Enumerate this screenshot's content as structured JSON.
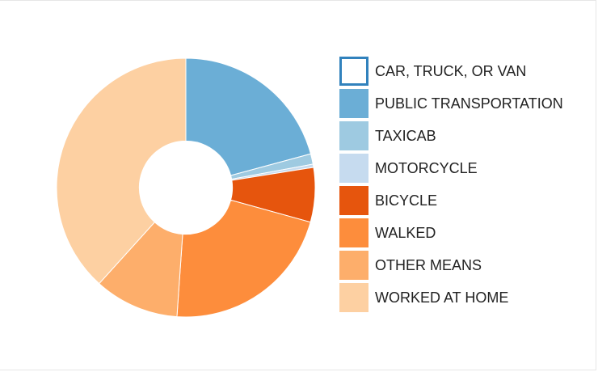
{
  "chart_data": {
    "type": "pie",
    "categories": [
      "CAR, TRUCK, OR VAN",
      "PUBLIC TRANSPORTATION",
      "TAXICAB",
      "MOTORCYCLE",
      "BICYCLE",
      "WALKED",
      "OTHER MEANS",
      "WORKED AT HOME"
    ],
    "values": [
      0.0,
      20.8,
      1.3,
      0.4,
      6.8,
      21.8,
      10.6,
      38.3
    ],
    "colors": [
      "#3182bd",
      "#6baed6",
      "#9ecae1",
      "#c6dbef",
      "#e6550d",
      "#fd8d3c",
      "#fdae6b",
      "#fdd0a2"
    ],
    "legend_hollow": [
      true,
      false,
      false,
      false,
      false,
      false,
      false,
      false
    ],
    "inner_radius_ratio": 0.36,
    "legend_position": "right",
    "title": "",
    "xlabel": "",
    "ylabel": ""
  }
}
